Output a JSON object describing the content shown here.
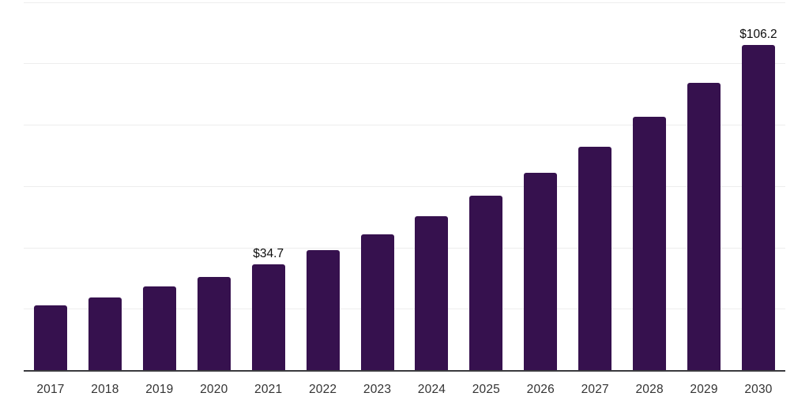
{
  "chart_data": {
    "type": "bar",
    "title": "",
    "categories": [
      "2017",
      "2018",
      "2019",
      "2020",
      "2021",
      "2022",
      "2023",
      "2024",
      "2025",
      "2026",
      "2027",
      "2028",
      "2029",
      "2030"
    ],
    "values": [
      21.4,
      23.9,
      27.4,
      30.6,
      34.7,
      39.3,
      44.5,
      50.4,
      57.0,
      64.6,
      73.1,
      82.8,
      93.8,
      106.2
    ],
    "data_labels": [
      {
        "category": "2021",
        "text": "$34.7"
      },
      {
        "category": "2030",
        "text": "$106.2"
      }
    ],
    "xlabel": "",
    "ylabel": "",
    "ylim": [
      0,
      120
    ],
    "grid_step": 20,
    "grid": "horizontal-only",
    "legend": "none",
    "colors": {
      "bar": "#36114E",
      "grid": "#ededed",
      "axis": "#3A3A3E",
      "tick_label": "#333333",
      "data_label": "#0D0D0D",
      "background": "#FFFFFF"
    }
  }
}
